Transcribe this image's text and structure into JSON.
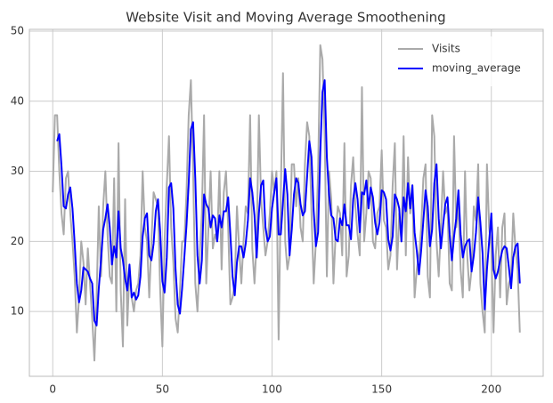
{
  "chart_data": {
    "type": "line",
    "title": "Website Visit and Moving Average Smoothening",
    "x": [
      0,
      1,
      2,
      3,
      4,
      5,
      6,
      7,
      8,
      9,
      10,
      11,
      12,
      13,
      14,
      15,
      16,
      17,
      18,
      19,
      20,
      21,
      22,
      23,
      24,
      25,
      26,
      27,
      28,
      29,
      30,
      31,
      32,
      33,
      34,
      35,
      36,
      37,
      38,
      39,
      40,
      41,
      42,
      43,
      44,
      45,
      46,
      47,
      48,
      49,
      50,
      51,
      52,
      53,
      54,
      55,
      56,
      57,
      58,
      59,
      60,
      61,
      62,
      63,
      64,
      65,
      66,
      67,
      68,
      69,
      70,
      71,
      72,
      73,
      74,
      75,
      76,
      77,
      78,
      79,
      80,
      81,
      82,
      83,
      84,
      85,
      86,
      87,
      88,
      89,
      90,
      91,
      92,
      93,
      94,
      95,
      96,
      97,
      98,
      99,
      100,
      101,
      102,
      103,
      104,
      105,
      106,
      107,
      108,
      109,
      110,
      111,
      112,
      113,
      114,
      115,
      116,
      117,
      118,
      119,
      120,
      121,
      122,
      123,
      124,
      125,
      126,
      127,
      128,
      129,
      130,
      131,
      132,
      133,
      134,
      135,
      136,
      137,
      138,
      139,
      140,
      141,
      142,
      143,
      144,
      145,
      146,
      147,
      148,
      149,
      150,
      151,
      152,
      153,
      154,
      155,
      156,
      157,
      158,
      159,
      160,
      161,
      162,
      163,
      164,
      165,
      166,
      167,
      168,
      169,
      170,
      171,
      172,
      173,
      174,
      175,
      176,
      177,
      178,
      179,
      180,
      181,
      182,
      183,
      184,
      185,
      186,
      187,
      188,
      189,
      190,
      191,
      192,
      193,
      194,
      195,
      196,
      197,
      198,
      199,
      200,
      201,
      202,
      203,
      204,
      205,
      206,
      207,
      208,
      209,
      210,
      211,
      212,
      213
    ],
    "series": [
      {
        "name": "Visits",
        "color": "#aaaaaa",
        "values": [
          27,
          38,
          38,
          30,
          24,
          21,
          29,
          30,
          24,
          20,
          15,
          7,
          12,
          20,
          17,
          11,
          19,
          14,
          9,
          3,
          12,
          25,
          15,
          25,
          30,
          21,
          15,
          14,
          29,
          10,
          34,
          13,
          5,
          26,
          8,
          16,
          12,
          10,
          13,
          14,
          18,
          30,
          22,
          20,
          12,
          20,
          27,
          26,
          25,
          13,
          5,
          20,
          28,
          35,
          22,
          17,
          9,
          7,
          13,
          20,
          20,
          27,
          38,
          43,
          30,
          14,
          10,
          18,
          24,
          38,
          14,
          22,
          30,
          19,
          21,
          20,
          30,
          16,
          27,
          30,
          22,
          11,
          12,
          14,
          25,
          19,
          14,
          20,
          25,
          24,
          38,
          19,
          14,
          20,
          38,
          26,
          22,
          18,
          20,
          24,
          30,
          27,
          30,
          6,
          27,
          44,
          20,
          16,
          18,
          31,
          31,
          25,
          29,
          22,
          20,
          31,
          37,
          35,
          24,
          14,
          20,
          30,
          48,
          46,
          35,
          15,
          30,
          26,
          14,
          21,
          25,
          24,
          18,
          34,
          15,
          18,
          28,
          32,
          25,
          21,
          18,
          42,
          20,
          24,
          30,
          29,
          20,
          19,
          24,
          25,
          33,
          23,
          22,
          16,
          18,
          28,
          34,
          16,
          24,
          20,
          35,
          18,
          32,
          24,
          28,
          12,
          16,
          18,
          22,
          29,
          31,
          15,
          12,
          38,
          35,
          20,
          15,
          22,
          30,
          24,
          25,
          14,
          13,
          35,
          22,
          25,
          16,
          12,
          30,
          18,
          13,
          16,
          25,
          23,
          31,
          14,
          10,
          7,
          31,
          22,
          19,
          7,
          18,
          22,
          12,
          22,
          24,
          11,
          14,
          15,
          24,
          19,
          16,
          7
        ]
      },
      {
        "name": "moving_average",
        "color": "#0000ff",
        "values": [
          null,
          null,
          34.3,
          35.3,
          30.7,
          25,
          24.7,
          26.7,
          27.7,
          24.7,
          19.7,
          14,
          11.3,
          13,
          16.3,
          16,
          15.7,
          14.7,
          14,
          8.7,
          8,
          13.3,
          17.3,
          21.7,
          23.3,
          25.3,
          22,
          16.7,
          19.3,
          17.7,
          24.3,
          19,
          17.3,
          14.7,
          13,
          16.7,
          12,
          12.7,
          11.7,
          12.3,
          15,
          20.7,
          23.3,
          24,
          18,
          17.3,
          19.7,
          24.3,
          26,
          21.3,
          14.3,
          12.7,
          17.7,
          27.7,
          28.3,
          24.7,
          16,
          11,
          9.7,
          13.3,
          17.7,
          22.3,
          28.3,
          36,
          37,
          29,
          18,
          14,
          17.3,
          26.7,
          25.3,
          24.7,
          22,
          23.7,
          23.3,
          20,
          23.7,
          22,
          24.3,
          24.3,
          26.3,
          21,
          15,
          12.3,
          17,
          19.3,
          19.3,
          17.7,
          19.7,
          23,
          29,
          27,
          23.7,
          17.7,
          24,
          28,
          28.7,
          22,
          20,
          20.7,
          24.7,
          27,
          29,
          21,
          21,
          25.7,
          30.3,
          26.7,
          18,
          21.7,
          26.7,
          29,
          28.3,
          25.3,
          23.7,
          24.3,
          29.3,
          34.3,
          32,
          24.3,
          19.3,
          21.3,
          32.7,
          41.3,
          43,
          32,
          26.7,
          23.7,
          23.3,
          20.3,
          20,
          23.3,
          22.3,
          25.3,
          22.3,
          22.3,
          20.3,
          26,
          28.3,
          26,
          21.3,
          27,
          26.7,
          28.7,
          24.7,
          27.7,
          26.3,
          22.7,
          21,
          22.7,
          27.3,
          27,
          26,
          20.3,
          18.7,
          20.7,
          26.7,
          26,
          24.7,
          20,
          26.3,
          24.3,
          28.3,
          24.7,
          28,
          21.3,
          18.7,
          15.3,
          18.7,
          23,
          27.3,
          25,
          19.3,
          21.7,
          28.3,
          31,
          23.3,
          19,
          22.3,
          25.3,
          26.3,
          21,
          17.3,
          20.7,
          23.3,
          27.3,
          21,
          17.7,
          19.3,
          20,
          20.3,
          15.7,
          18,
          21.3,
          26.3,
          22.7,
          18.3,
          10.3,
          16,
          20,
          24,
          16,
          14.7,
          15.7,
          17.3,
          18.7,
          19.3,
          19,
          16.3,
          13.3,
          17.7,
          19.3,
          19.7,
          14
        ]
      }
    ],
    "xlim": [
      -10.65,
      223.65
    ],
    "ylim": [
      0.75,
      50.25
    ],
    "xticks": [
      0,
      50,
      100,
      150,
      200
    ],
    "yticks": [
      10,
      20,
      30,
      40,
      50
    ],
    "grid": true,
    "legend": "upper right"
  }
}
